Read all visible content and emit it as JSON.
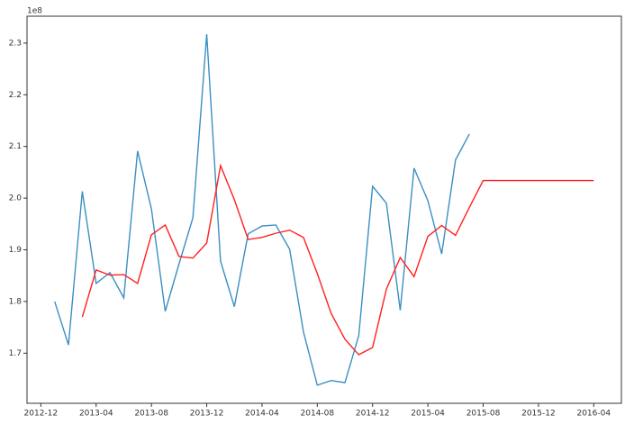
{
  "chart_data": {
    "type": "line",
    "offset_label": "1e8",
    "x": [
      "2013-01",
      "2013-02",
      "2013-03",
      "2013-04",
      "2013-05",
      "2013-06",
      "2013-07",
      "2013-08",
      "2013-09",
      "2013-10",
      "2013-11",
      "2013-12",
      "2014-01",
      "2014-02",
      "2014-03",
      "2014-04",
      "2014-05",
      "2014-06",
      "2014-07",
      "2014-08",
      "2014-09",
      "2014-10",
      "2014-11",
      "2014-12",
      "2015-01",
      "2015-02",
      "2015-03",
      "2015-04",
      "2015-05",
      "2015-06",
      "2015-07",
      "2015-08",
      "2015-09",
      "2015-10",
      "2015-11",
      "2015-12",
      "2016-01",
      "2016-02",
      "2016-03",
      "2016-04"
    ],
    "series": [
      {
        "color": "#3a8fc2",
        "values": [
          180000000,
          171600000,
          201300000,
          183500000,
          185600000,
          180700000,
          209100000,
          197900000,
          178100000,
          187300000,
          196200000,
          231700000,
          187800000,
          179000000,
          193100000,
          194600000,
          194800000,
          190100000,
          174100000,
          163800000,
          164700000,
          164300000,
          173400000,
          202300000,
          199000000,
          178300000,
          205800000,
          199500000,
          189200000,
          207400000,
          212400000,
          null,
          null,
          null,
          null,
          null,
          null,
          null,
          null,
          null
        ]
      },
      {
        "color": "#ff2020",
        "values": [
          null,
          null,
          177000000,
          186100000,
          185100000,
          185200000,
          183500000,
          192900000,
          194800000,
          188700000,
          188400000,
          191300000,
          206300000,
          199700000,
          192000000,
          192400000,
          193200000,
          193800000,
          192400000,
          185400000,
          177700000,
          172700000,
          169700000,
          171100000,
          182400000,
          188500000,
          184800000,
          192600000,
          194700000,
          192800000,
          198200000,
          203400000,
          203400000,
          203400000,
          203400000,
          203400000,
          203400000,
          203400000,
          203400000,
          203400000
        ]
      }
    ],
    "xlim": [
      "2012-11",
      "2016-06"
    ],
    "xticks": [
      "2012-12",
      "2013-04",
      "2013-08",
      "2013-12",
      "2014-04",
      "2014-08",
      "2014-12",
      "2015-04",
      "2015-08",
      "2015-12",
      "2016-04"
    ],
    "ylim": [
      160300000,
      235200000
    ],
    "yticks": [
      {
        "value": 170000000,
        "label": "1.7"
      },
      {
        "value": 180000000,
        "label": "1.8"
      },
      {
        "value": 190000000,
        "label": "1.9"
      },
      {
        "value": 200000000,
        "label": "2.0"
      },
      {
        "value": 210000000,
        "label": "2.1"
      },
      {
        "value": 220000000,
        "label": "2.2"
      },
      {
        "value": 230000000,
        "label": "2.3"
      }
    ],
    "grid": false
  }
}
